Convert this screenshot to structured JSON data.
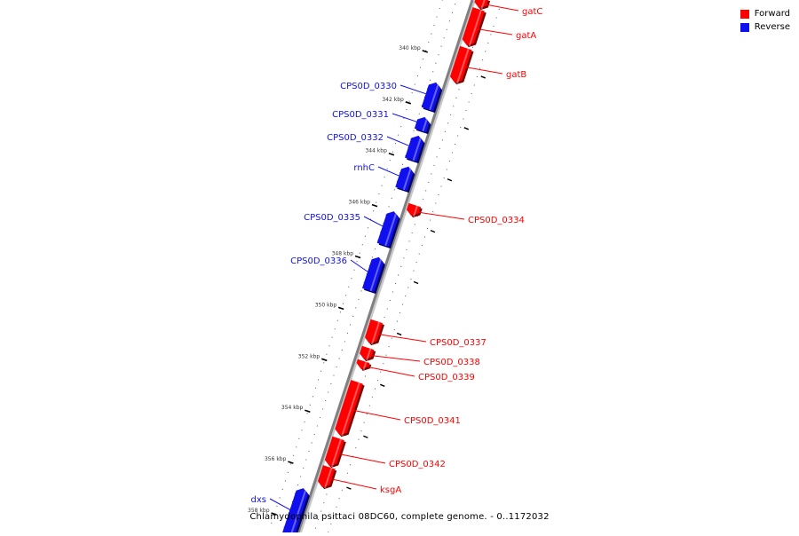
{
  "caption": "Chlamydophila psittaci 08DC60, complete genome. - 0..1172032",
  "legend": [
    {
      "label": "Forward",
      "color": "#ff0000"
    },
    {
      "label": "Reverse",
      "color": "#1010ee"
    }
  ],
  "colors": {
    "forward": "#ff0000",
    "reverse": "#1010ee",
    "backbone": "#808080"
  },
  "ticks": [
    "340 kbp",
    "342 kbp",
    "344 kbp",
    "346 kbp",
    "348 kbp",
    "350 kbp",
    "352 kbp",
    "354 kbp",
    "356 kbp",
    "358 kbp"
  ],
  "genes": [
    {
      "name": "gatC",
      "strand": "forward"
    },
    {
      "name": "gatA",
      "strand": "forward"
    },
    {
      "name": "gatB",
      "strand": "forward"
    },
    {
      "name": "CPS0D_0330",
      "strand": "reverse"
    },
    {
      "name": "CPS0D_0331",
      "strand": "reverse"
    },
    {
      "name": "CPS0D_0332",
      "strand": "reverse"
    },
    {
      "name": "rnhC",
      "strand": "reverse"
    },
    {
      "name": "CPS0D_0334",
      "strand": "forward"
    },
    {
      "name": "CPS0D_0335",
      "strand": "reverse"
    },
    {
      "name": "CPS0D_0336",
      "strand": "reverse"
    },
    {
      "name": "CPS0D_0337",
      "strand": "forward"
    },
    {
      "name": "CPS0D_0338",
      "strand": "forward"
    },
    {
      "name": "CPS0D_0339",
      "strand": "forward"
    },
    {
      "name": "CPS0D_0341",
      "strand": "forward"
    },
    {
      "name": "CPS0D_0342",
      "strand": "forward"
    },
    {
      "name": "ksgA",
      "strand": "forward"
    },
    {
      "name": "dxs",
      "strand": "reverse"
    }
  ]
}
